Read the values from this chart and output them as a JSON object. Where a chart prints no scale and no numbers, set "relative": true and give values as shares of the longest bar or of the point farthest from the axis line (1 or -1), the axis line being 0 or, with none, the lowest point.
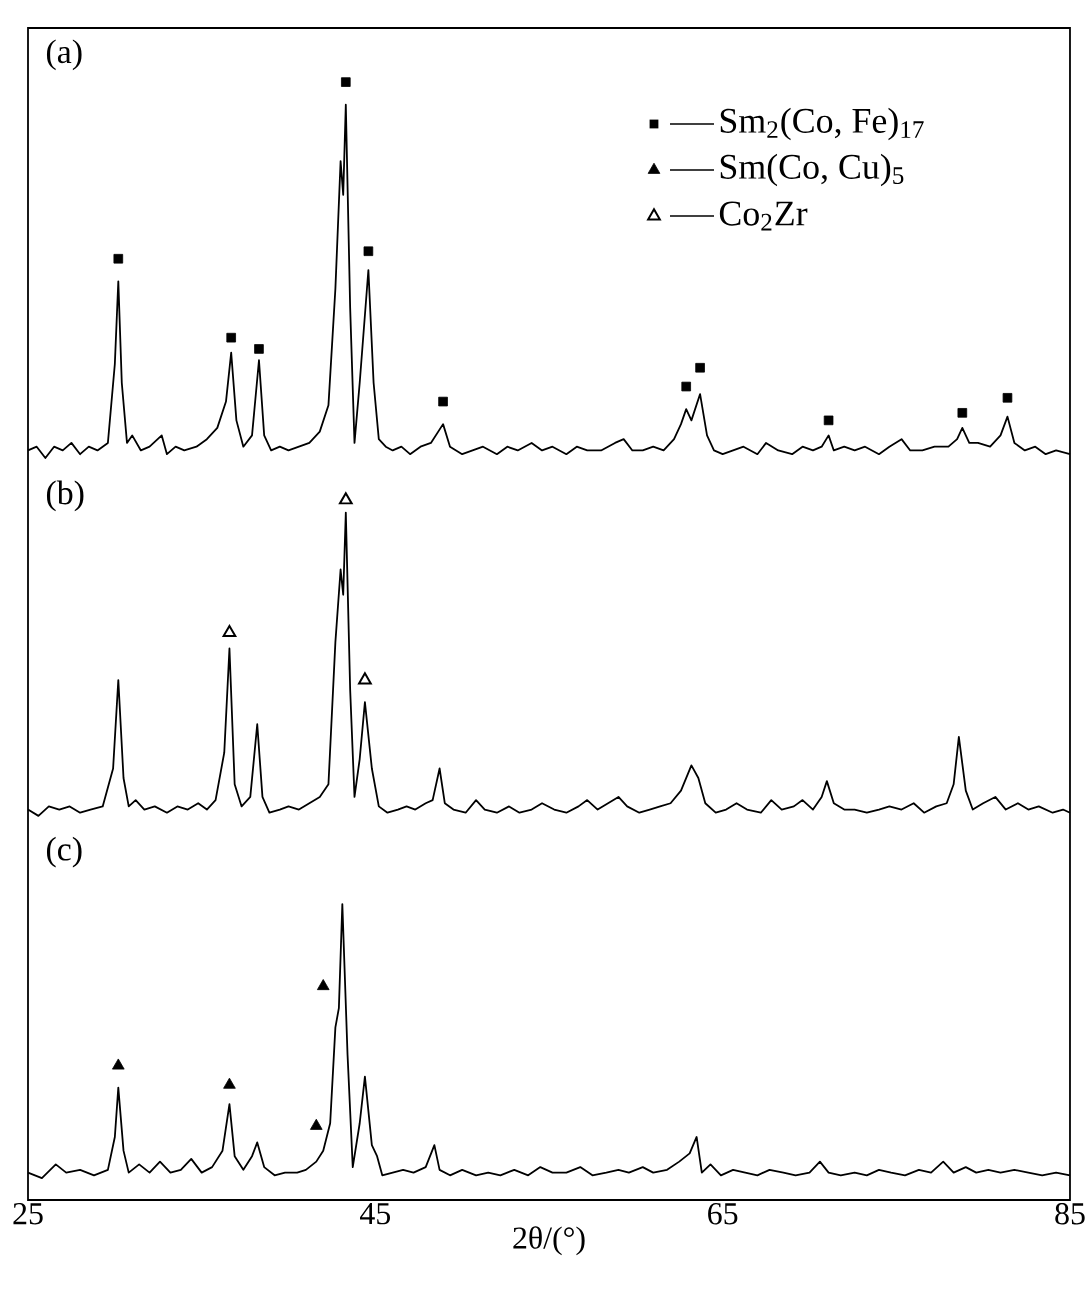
{
  "chart_data": [
    {
      "type": "line",
      "relative": true,
      "annotations": [
        "(a)"
      ],
      "xlim": [
        25,
        85
      ],
      "xticks": [
        25,
        45,
        65,
        85
      ],
      "tick_labels": false,
      "legend": "top right",
      "series": [
        {
          "type": "line",
          "color": "#000000",
          "x": [
            25,
            25.5,
            26,
            26.5,
            27,
            27.5,
            28,
            28.5,
            29,
            29.6,
            30.0,
            30.2,
            30.4,
            30.7,
            31,
            31.5,
            32,
            32.7,
            33,
            33.5,
            34,
            34.7,
            35.3,
            35.9,
            36.4,
            36.7,
            37.0,
            37.4,
            37.9,
            38.3,
            38.6,
            39,
            39.5,
            40,
            40.6,
            41.2,
            41.8,
            42.3,
            42.7,
            43.0,
            43.15,
            43.3,
            43.55,
            43.8,
            44.1,
            44.6,
            44.9,
            45.2,
            45.6,
            46,
            46.5,
            47,
            47.6,
            48.2,
            48.9,
            49.3,
            50,
            50.6,
            51.2,
            52,
            52.6,
            53.2,
            54,
            54.6,
            55.2,
            56,
            56.6,
            57.2,
            58,
            58.8,
            59.3,
            59.8,
            60.4,
            61,
            61.6,
            62.2,
            62.6,
            62.9,
            63.2,
            63.7,
            64.1,
            64.5,
            65,
            65.6,
            66.2,
            67,
            67.5,
            68.2,
            69,
            69.6,
            70.2,
            70.7,
            71.1,
            71.4,
            72,
            72.6,
            73.2,
            74,
            74.6,
            75.3,
            75.8,
            76.5,
            77.2,
            78,
            78.5,
            78.8,
            79.2,
            79.7,
            80.4,
            81,
            81.4,
            81.8,
            82.4,
            83,
            83.6,
            84.2,
            85
          ],
          "values": [
            0.02,
            0.03,
            0,
            0.03,
            0.02,
            0.04,
            0.01,
            0.03,
            0.02,
            0.04,
            0.25,
            0.47,
            0.2,
            0.04,
            0.06,
            0.02,
            0.03,
            0.06,
            0.01,
            0.03,
            0.02,
            0.03,
            0.05,
            0.08,
            0.15,
            0.28,
            0.1,
            0.03,
            0.06,
            0.26,
            0.06,
            0.02,
            0.03,
            0.02,
            0.03,
            0.04,
            0.07,
            0.14,
            0.45,
            0.79,
            0.7,
            0.94,
            0.4,
            0.04,
            0.2,
            0.5,
            0.2,
            0.05,
            0.03,
            0.02,
            0.03,
            0.01,
            0.03,
            0.04,
            0.09,
            0.03,
            0.01,
            0.02,
            0.03,
            0.01,
            0.03,
            0.02,
            0.04,
            0.02,
            0.03,
            0.01,
            0.03,
            0.02,
            0.02,
            0.04,
            0.05,
            0.02,
            0.02,
            0.03,
            0.02,
            0.05,
            0.09,
            0.13,
            0.1,
            0.17,
            0.06,
            0.02,
            0.01,
            0.02,
            0.03,
            0.01,
            0.04,
            0.02,
            0.01,
            0.03,
            0.02,
            0.03,
            0.06,
            0.02,
            0.03,
            0.02,
            0.03,
            0.01,
            0.03,
            0.05,
            0.02,
            0.02,
            0.03,
            0.03,
            0.05,
            0.08,
            0.04,
            0.04,
            0.03,
            0.06,
            0.11,
            0.04,
            0.02,
            0.03,
            0.01,
            0.02,
            0.01
          ]
        },
        {
          "type": "scatter",
          "name": "Sm$_{2}$(Co, Fe)$_{17}$",
          "color": "#000000",
          "marker": "square",
          "x": [
            30.2,
            36.7,
            38.3,
            43.3,
            44.6,
            48.9,
            62.9,
            63.7,
            71.1,
            78.8,
            81.4
          ],
          "values": [
            0.53,
            0.32,
            0.29,
            1.0,
            0.55,
            0.15,
            0.19,
            0.24,
            0.1,
            0.12,
            0.16
          ]
        }
      ]
    },
    {
      "type": "line",
      "relative": true,
      "annotations": [
        "(b)"
      ],
      "xlim": [
        25,
        85
      ],
      "xticks": [
        25,
        45,
        65,
        85
      ],
      "tick_labels": false,
      "series": [
        {
          "type": "line",
          "color": "#000000",
          "x": [
            25,
            25.6,
            26.2,
            26.8,
            27.4,
            28,
            28.6,
            29.3,
            29.9,
            30.2,
            30.5,
            30.8,
            31.2,
            31.7,
            32.3,
            33,
            33.6,
            34.2,
            34.8,
            35.3,
            35.8,
            36.3,
            36.6,
            36.9,
            37.3,
            37.8,
            38.2,
            38.5,
            38.9,
            39.5,
            40,
            40.6,
            41.2,
            41.8,
            42.3,
            42.7,
            43.0,
            43.15,
            43.3,
            43.55,
            43.8,
            44.1,
            44.4,
            44.8,
            45.2,
            45.7,
            46.3,
            46.8,
            47.3,
            47.9,
            48.3,
            48.7,
            49,
            49.5,
            50.2,
            50.8,
            51.3,
            52,
            52.7,
            53.3,
            54,
            54.6,
            55.3,
            56,
            56.7,
            57.2,
            57.8,
            58.4,
            59,
            59.5,
            60.2,
            60.8,
            61.4,
            62,
            62.6,
            63.2,
            63.6,
            64,
            64.6,
            65.2,
            65.8,
            66.4,
            67.2,
            67.8,
            68.4,
            69.1,
            69.6,
            70.2,
            70.7,
            71.0,
            71.4,
            72,
            72.6,
            73.3,
            74,
            74.6,
            75.3,
            76,
            76.6,
            77.3,
            77.9,
            78.3,
            78.6,
            79,
            79.4,
            80,
            80.7,
            81.3,
            82,
            82.6,
            83.2,
            84,
            84.6,
            85
          ],
          "values": [
            0.02,
            0,
            0.03,
            0.02,
            0.03,
            0.01,
            0.02,
            0.03,
            0.15,
            0.43,
            0.12,
            0.03,
            0.05,
            0.02,
            0.03,
            0.01,
            0.03,
            0.02,
            0.04,
            0.02,
            0.05,
            0.2,
            0.53,
            0.1,
            0.03,
            0.06,
            0.29,
            0.06,
            0.01,
            0.02,
            0.03,
            0.02,
            0.04,
            0.06,
            0.1,
            0.55,
            0.78,
            0.7,
            0.96,
            0.4,
            0.06,
            0.18,
            0.36,
            0.15,
            0.03,
            0.01,
            0.02,
            0.03,
            0.02,
            0.04,
            0.05,
            0.15,
            0.04,
            0.02,
            0.01,
            0.05,
            0.02,
            0.01,
            0.03,
            0.01,
            0.02,
            0.04,
            0.02,
            0.01,
            0.03,
            0.05,
            0.02,
            0.04,
            0.06,
            0.03,
            0.01,
            0.02,
            0.03,
            0.04,
            0.08,
            0.16,
            0.12,
            0.04,
            0.01,
            0.02,
            0.04,
            0.02,
            0.01,
            0.05,
            0.02,
            0.03,
            0.05,
            0.02,
            0.06,
            0.11,
            0.04,
            0.02,
            0.02,
            0.01,
            0.02,
            0.03,
            0.02,
            0.04,
            0.01,
            0.03,
            0.04,
            0.1,
            0.25,
            0.08,
            0.02,
            0.04,
            0.06,
            0.02,
            0.04,
            0.02,
            0.03,
            0.01,
            0.02,
            0.01
          ]
        },
        {
          "type": "scatter",
          "name": "Co$_{2}$Zr",
          "color": "#000000",
          "marker": "triangle-open",
          "x": [
            36.6,
            43.3,
            44.4
          ],
          "values": [
            0.58,
            1.0,
            0.43
          ]
        }
      ]
    },
    {
      "type": "line",
      "relative": true,
      "annotations": [
        "(c)"
      ],
      "xlabel": "2θ/(°)",
      "xlim": [
        25,
        85
      ],
      "xticks": [
        25,
        45,
        65,
        85
      ],
      "tick_labels": "x",
      "series": [
        {
          "type": "line",
          "color": "#000000",
          "x": [
            25,
            25.8,
            26.6,
            27.2,
            28,
            28.8,
            29.6,
            30.0,
            30.2,
            30.5,
            30.8,
            31.4,
            32,
            32.6,
            33.2,
            33.8,
            34.4,
            35,
            35.6,
            36.2,
            36.6,
            36.9,
            37.4,
            37.9,
            38.2,
            38.6,
            39.2,
            39.8,
            40.5,
            41,
            41.6,
            42,
            42.4,
            42.7,
            42.9,
            43.1,
            43.4,
            43.7,
            44.1,
            44.4,
            44.8,
            45.1,
            45.4,
            46,
            46.6,
            47.2,
            47.9,
            48.4,
            48.7,
            49.3,
            50,
            50.8,
            51.5,
            52.2,
            53,
            53.8,
            54.5,
            55.2,
            56,
            56.8,
            57.5,
            58.3,
            59,
            59.6,
            60.4,
            61,
            61.8,
            62.5,
            63.1,
            63.5,
            63.8,
            64.3,
            64.9,
            65.6,
            66.3,
            67,
            67.7,
            68.5,
            69.2,
            70,
            70.6,
            71.1,
            71.8,
            72.6,
            73.3,
            74,
            74.7,
            75.5,
            76.3,
            77,
            77.7,
            78.3,
            79,
            79.6,
            80.3,
            81,
            81.8,
            82.6,
            83.4,
            84.2,
            85
          ],
          "values": [
            0.02,
            0,
            0.05,
            0.02,
            0.03,
            0.01,
            0.03,
            0.15,
            0.33,
            0.1,
            0.02,
            0.05,
            0.02,
            0.06,
            0.02,
            0.03,
            0.07,
            0.02,
            0.04,
            0.1,
            0.27,
            0.08,
            0.03,
            0.08,
            0.13,
            0.04,
            0.01,
            0.02,
            0.02,
            0.03,
            0.06,
            0.1,
            0.2,
            0.55,
            0.62,
            1.0,
            0.45,
            0.04,
            0.2,
            0.37,
            0.12,
            0.08,
            0.01,
            0.02,
            0.03,
            0.02,
            0.04,
            0.12,
            0.03,
            0.01,
            0.03,
            0.01,
            0.02,
            0.01,
            0.03,
            0.01,
            0.04,
            0.02,
            0.02,
            0.04,
            0.01,
            0.02,
            0.03,
            0.02,
            0.04,
            0.02,
            0.03,
            0.06,
            0.09,
            0.15,
            0.02,
            0.05,
            0.01,
            0.03,
            0.02,
            0.01,
            0.03,
            0.02,
            0.01,
            0.02,
            0.06,
            0.02,
            0.01,
            0.02,
            0.01,
            0.03,
            0.02,
            0.01,
            0.03,
            0.02,
            0.06,
            0.02,
            0.04,
            0.02,
            0.03,
            0.02,
            0.03,
            0.02,
            0.01,
            0.02,
            0.01
          ]
        },
        {
          "type": "scatter",
          "name": "Sm(Co, Cu)$_{5}$",
          "color": "#000000",
          "marker": "triangle",
          "x": [
            30.2,
            36.6,
            41.6,
            42.0
          ],
          "values": [
            0.41,
            0.34,
            0.19,
            0.7
          ]
        }
      ]
    }
  ]
}
